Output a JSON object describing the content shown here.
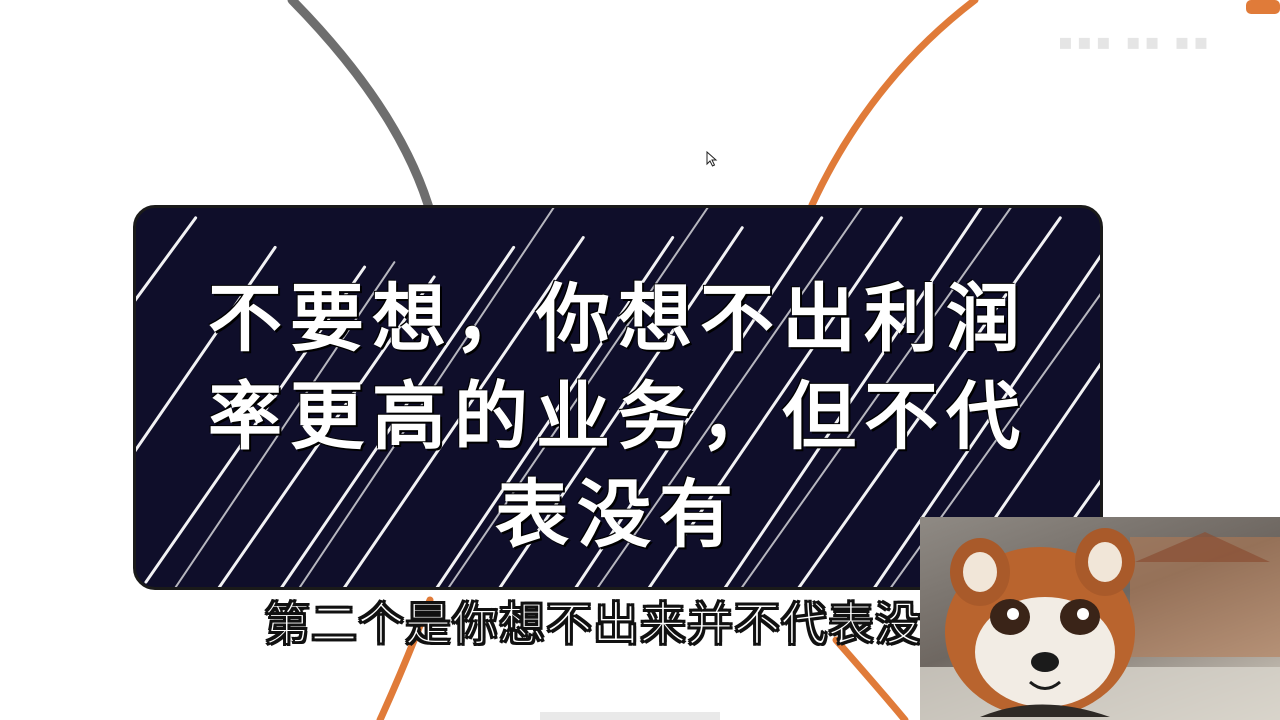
{
  "slide": {
    "title": "不要想，你想不出利润率更高的业务，但不代表没有",
    "colors": {
      "card_bg": "#0f0e2a",
      "card_text": "#ffffff",
      "arc_gray": "#6e6e6e",
      "arc_orange": "#e07b39"
    }
  },
  "subtitle": {
    "text": "第二个是你想不出来并不代表没有啊"
  },
  "overlay": {
    "webcam_icon": "red-panda-avatar-icon",
    "cursor_icon": "mouse-cursor-icon"
  }
}
